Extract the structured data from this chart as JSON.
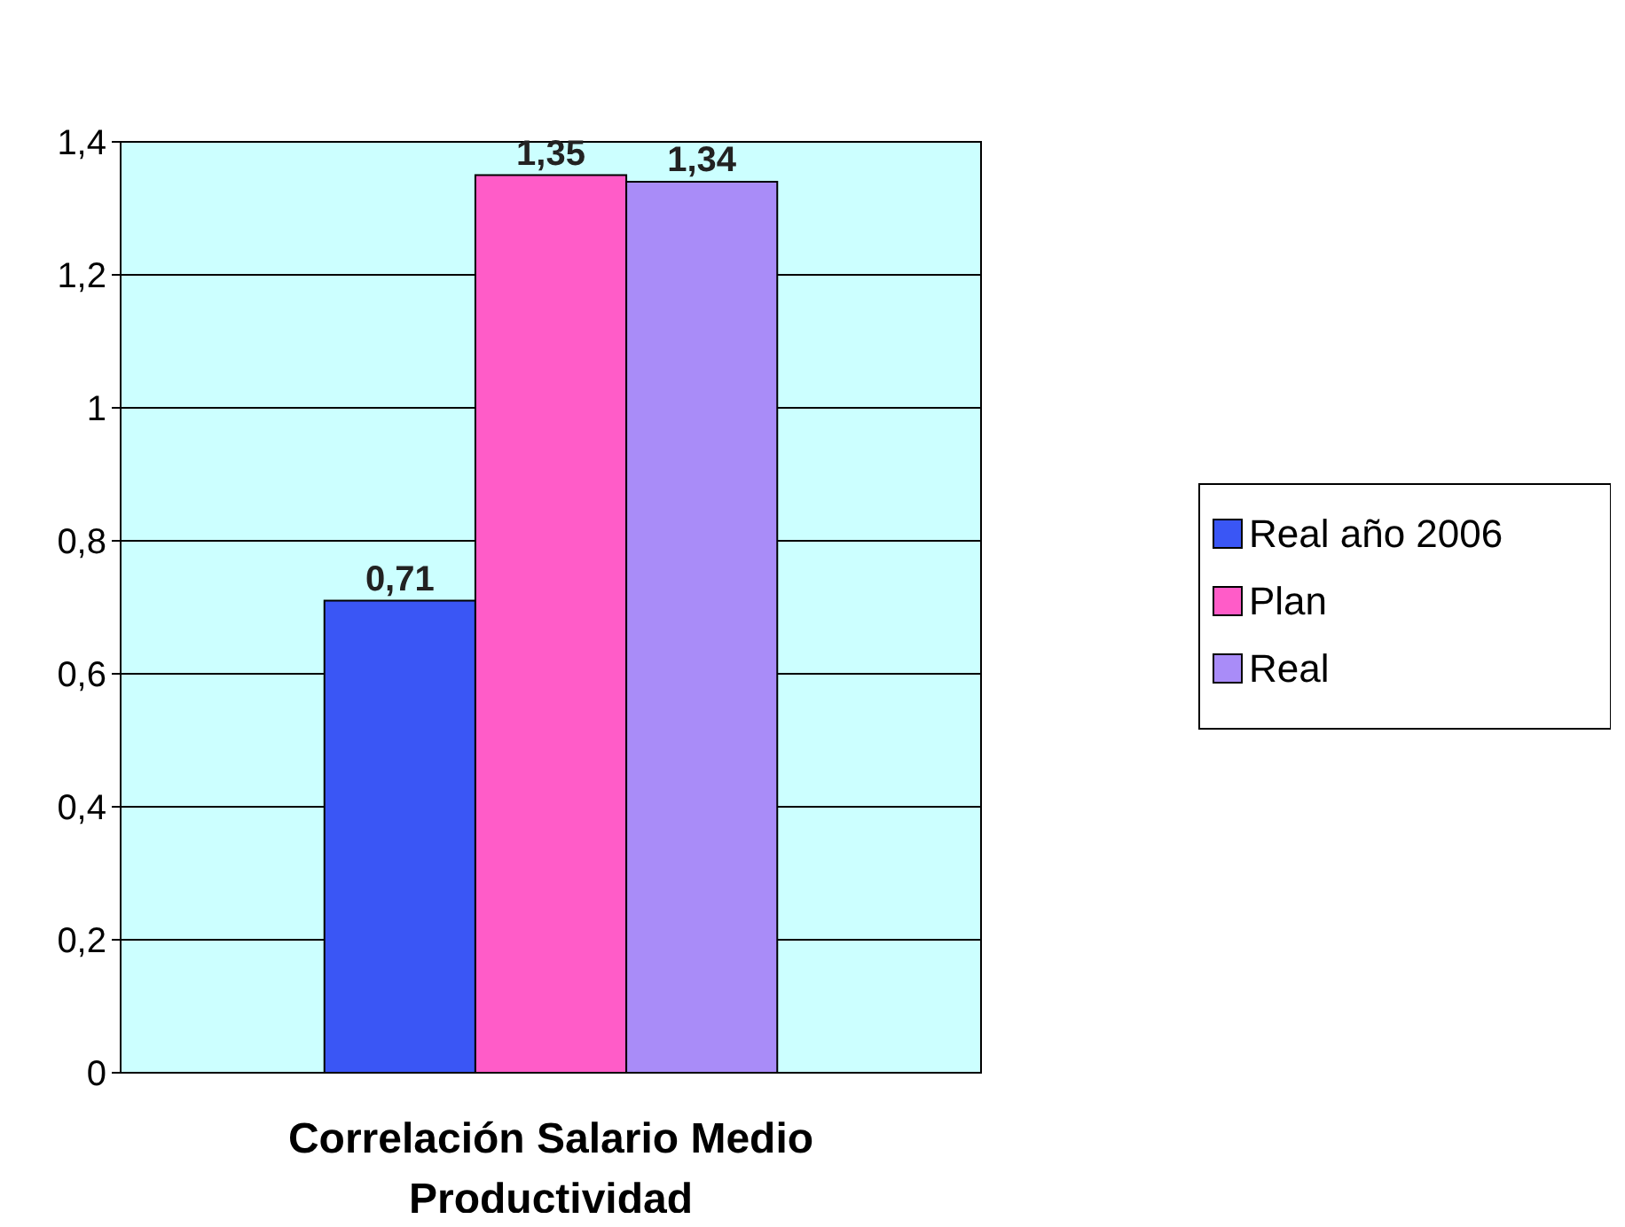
{
  "chart_data": {
    "type": "bar",
    "categories": [
      "Correlación Salario Medio Productividad"
    ],
    "series": [
      {
        "name": "Real año 2006",
        "color": "#3a56f5",
        "values": [
          0.71
        ],
        "value_labels": [
          "0,71"
        ]
      },
      {
        "name": "Plan",
        "color": "#ff5cc8",
        "values": [
          1.35
        ],
        "value_labels": [
          "1,35"
        ]
      },
      {
        "name": "Real",
        "color": "#a98cf8",
        "values": [
          1.34
        ],
        "value_labels": [
          "1,34"
        ]
      }
    ],
    "ylim": [
      0,
      1.4
    ],
    "yticks": [
      0,
      {
        "value": 0.2,
        "label": "0,2"
      },
      {
        "value": 0.4,
        "label": "0,4"
      },
      {
        "value": 0.6,
        "label": "0,6"
      },
      {
        "value": 0.8,
        "label": "0,8"
      },
      1,
      {
        "value": 1.2,
        "label": "1,2"
      },
      {
        "value": 1.4,
        "label": "1,4"
      }
    ],
    "grid": "y",
    "legend": "right"
  }
}
